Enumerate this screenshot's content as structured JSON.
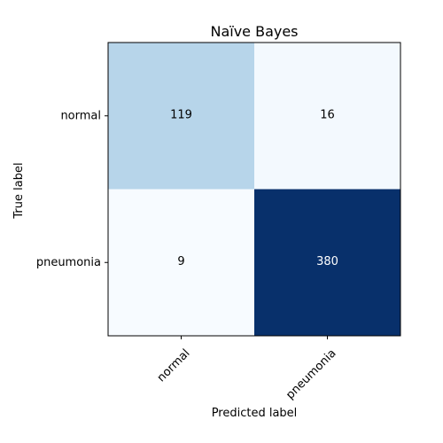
{
  "chart_data": {
    "type": "heatmap",
    "title": "Naïve Bayes",
    "xlabel": "Predicted label",
    "ylabel": "True label",
    "x_categories": [
      "normal",
      "pneumonia"
    ],
    "y_categories": [
      "normal",
      "pneumonia"
    ],
    "values": [
      [
        119,
        16
      ],
      [
        9,
        380
      ]
    ],
    "colormap": "Blues",
    "value_range": [
      9,
      380
    ],
    "grid": false,
    "legend": "none",
    "text_colors": {
      "dark_cell": "#ffffff",
      "light_cell": "#000000"
    }
  }
}
